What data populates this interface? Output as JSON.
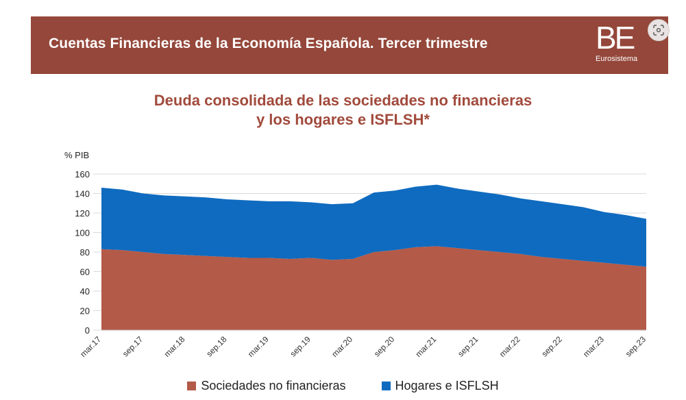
{
  "banner": {
    "title": "Cuentas Financieras de la Economía Española. Tercer trimestre",
    "logo_mark": "BE",
    "logo_sub": "Eurosistema",
    "background": "#94473a"
  },
  "scan_button": {
    "icon": "lens-scan-icon"
  },
  "chart_data": {
    "type": "area",
    "stacked": true,
    "title": "Deuda consolidada de las sociedades no financieras y los hogares e ISFLSH*",
    "title_lines": [
      "Deuda consolidada de las sociedades no financieras",
      "y los hogares e ISFLSH*"
    ],
    "ylabel": "% PIB",
    "xlabel": "",
    "ylim": [
      0,
      160
    ],
    "yticks": [
      0,
      20,
      40,
      60,
      80,
      100,
      120,
      140,
      160
    ],
    "grid": true,
    "legend_position": "bottom",
    "x": [
      "mar.17",
      "jun.17",
      "sep.17",
      "dic.17",
      "mar.18",
      "jun.18",
      "sep.18",
      "dic.18",
      "mar.19",
      "jun.19",
      "sep.19",
      "dic.19",
      "mar.20",
      "jun.20",
      "sep.20",
      "dic.20",
      "mar.21",
      "jun.21",
      "sep.21",
      "dic.21",
      "mar.22",
      "jun.22",
      "sep.22",
      "dic.22",
      "mar.23",
      "jun.23",
      "sep.23"
    ],
    "tick_labels": [
      "mar.17",
      "sep.17",
      "mar.18",
      "sep.18",
      "mar.19",
      "sep.19",
      "mar.20",
      "sep.20",
      "mar.21",
      "sep.21",
      "mar.22",
      "sep.22",
      "mar.23",
      "sep.23"
    ],
    "series": [
      {
        "name": "Sociedades no financieras",
        "color": "#b45a48",
        "values": [
          83,
          82,
          80,
          78,
          77,
          76,
          75,
          74,
          74,
          73,
          74,
          72,
          73,
          80,
          82,
          85,
          86,
          84,
          82,
          80,
          78,
          75,
          73,
          71,
          69,
          67,
          65
        ]
      },
      {
        "name": "Hogares e ISFLSH",
        "color": "#0f6bbf",
        "values": [
          63,
          62,
          60,
          60,
          60,
          60,
          59,
          59,
          58,
          59,
          57,
          57,
          57,
          61,
          61,
          62,
          63,
          61,
          60,
          59,
          57,
          57,
          56,
          55,
          52,
          51,
          49
        ]
      }
    ]
  }
}
